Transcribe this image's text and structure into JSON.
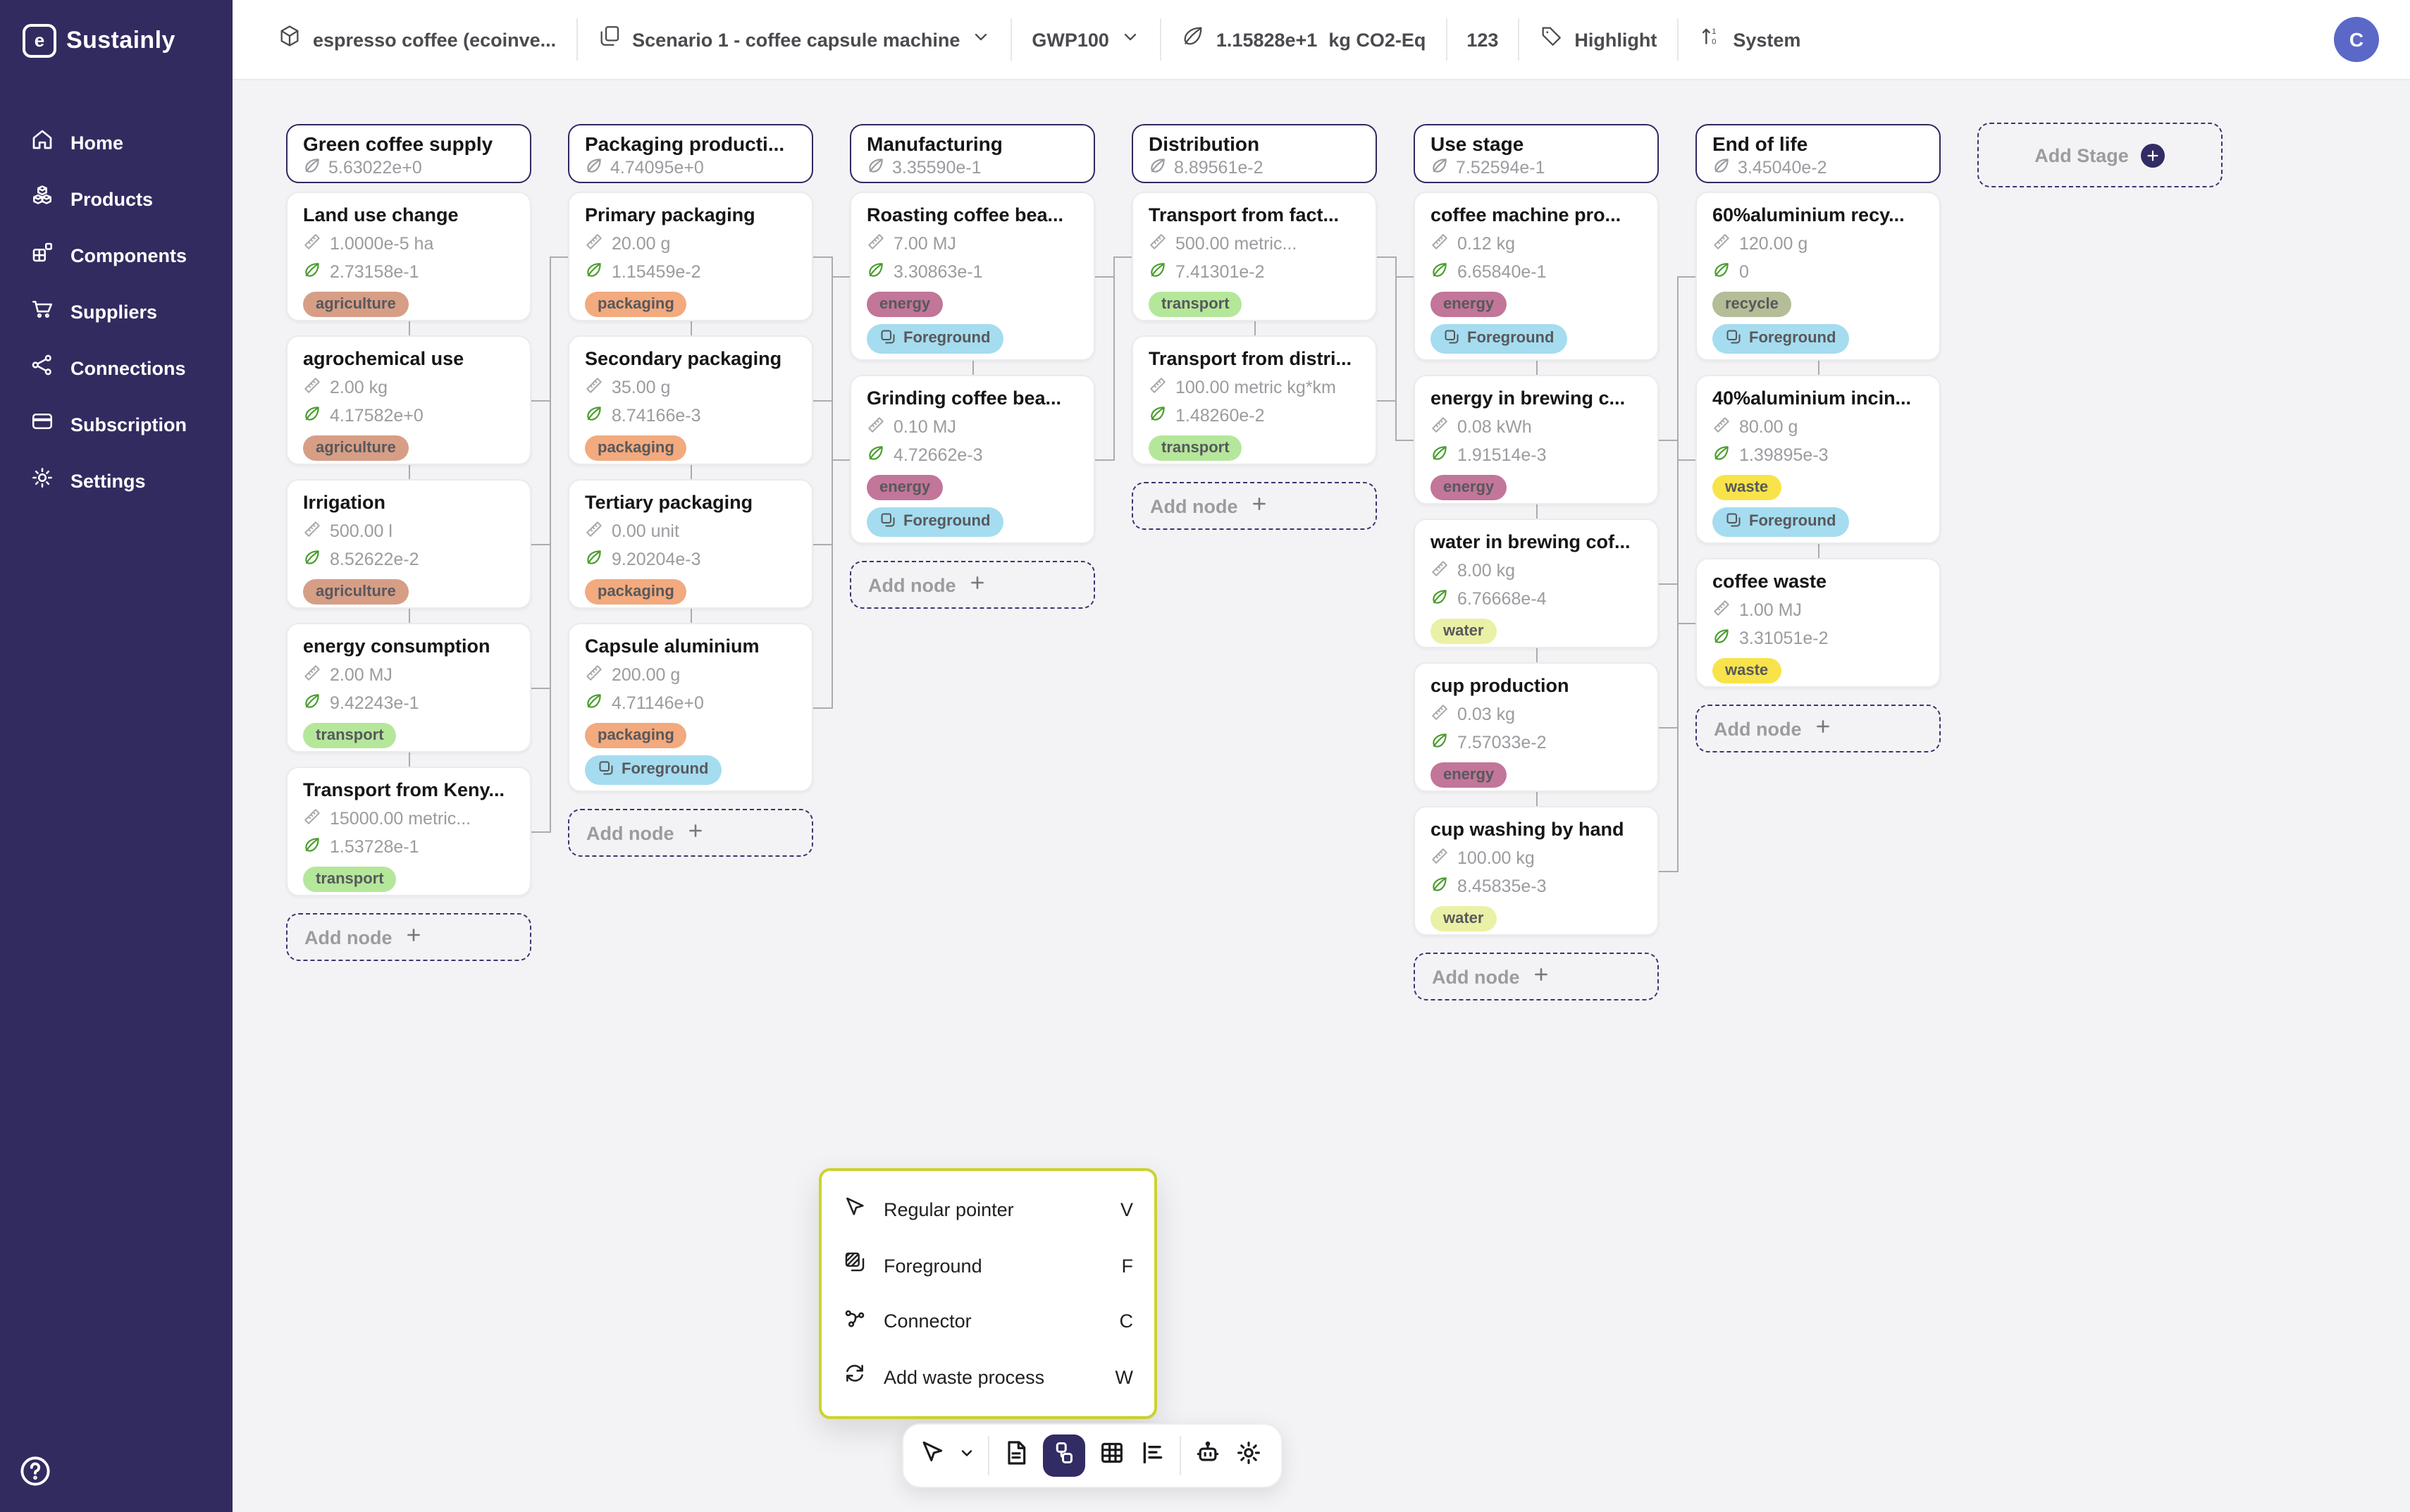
{
  "brand": {
    "name": "Sustainly"
  },
  "header": {
    "product": "espresso coffee (ecoinve...",
    "scenario": "Scenario 1 - coffee capsule machine",
    "method": "GWP100",
    "total_value": "1.15828e+1",
    "total_unit": "kg CO2-Eq",
    "count": "123",
    "highlight_label": "Highlight",
    "system_label": "System",
    "avatar_initial": "C"
  },
  "sidebar": {
    "items": [
      {
        "label": "Home",
        "icon": "home-icon"
      },
      {
        "label": "Products",
        "icon": "products-icon"
      },
      {
        "label": "Components",
        "icon": "components-icon"
      },
      {
        "label": "Suppliers",
        "icon": "suppliers-icon"
      },
      {
        "label": "Connections",
        "icon": "connections-icon"
      },
      {
        "label": "Subscription",
        "icon": "subscription-icon"
      },
      {
        "label": "Settings",
        "icon": "settings-icon"
      }
    ],
    "help_icon": "help-icon"
  },
  "canvas": {
    "add_stage_label": "Add Stage",
    "add_node_label": "Add node",
    "foreground_label": "Foreground",
    "stages": [
      {
        "title": "Green coffee supply",
        "value": "5.63022e+0",
        "nodes": [
          {
            "title": "Land use change",
            "amount": "1.0000e-5 ha",
            "value": "2.73158e-1",
            "tag": "agriculture",
            "foreground": false
          },
          {
            "title": "agrochemical use",
            "amount": "2.00 kg",
            "value": "4.17582e+0",
            "tag": "agriculture",
            "foreground": false
          },
          {
            "title": "Irrigation",
            "amount": "500.00 l",
            "value": "8.52622e-2",
            "tag": "agriculture",
            "foreground": false
          },
          {
            "title": "energy consumption",
            "amount": "2.00 MJ",
            "value": "9.42243e-1",
            "tag": "transport",
            "foreground": false
          },
          {
            "title": "Transport from Keny...",
            "amount": "15000.00 metric...",
            "value": "1.53728e-1",
            "tag": "transport",
            "foreground": false
          }
        ]
      },
      {
        "title": "Packaging producti...",
        "value": "4.74095e+0",
        "nodes": [
          {
            "title": "Primary packaging",
            "amount": "20.00 g",
            "value": "1.15459e-2",
            "tag": "packaging",
            "foreground": false
          },
          {
            "title": "Secondary packaging",
            "amount": "35.00 g",
            "value": "8.74166e-3",
            "tag": "packaging",
            "foreground": false
          },
          {
            "title": "Tertiary packaging",
            "amount": "0.00 unit",
            "value": "9.20204e-3",
            "tag": "packaging",
            "foreground": false
          },
          {
            "title": "Capsule aluminium",
            "amount": "200.00 g",
            "value": "4.71146e+0",
            "tag": "packaging",
            "foreground": true
          }
        ]
      },
      {
        "title": "Manufacturing",
        "value": "3.35590e-1",
        "nodes": [
          {
            "title": "Roasting coffee bea...",
            "amount": "7.00 MJ",
            "value": "3.30863e-1",
            "tag": "energy",
            "foreground": true
          },
          {
            "title": "Grinding coffee bea...",
            "amount": "0.10 MJ",
            "value": "4.72662e-3",
            "tag": "energy",
            "foreground": true
          }
        ]
      },
      {
        "title": "Distribution",
        "value": "8.89561e-2",
        "nodes": [
          {
            "title": "Transport from fact...",
            "amount": "500.00 metric...",
            "value": "7.41301e-2",
            "tag": "transport",
            "foreground": false
          },
          {
            "title": "Transport from distri...",
            "amount": "100.00 metric kg*km",
            "value": "1.48260e-2",
            "tag": "transport",
            "foreground": false
          }
        ]
      },
      {
        "title": "Use stage",
        "value": "7.52594e-1",
        "nodes": [
          {
            "title": "coffee machine pro...",
            "amount": "0.12 kg",
            "value": "6.65840e-1",
            "tag": "energy",
            "foreground": true
          },
          {
            "title": "energy in brewing c...",
            "amount": "0.08 kWh",
            "value": "1.91514e-3",
            "tag": "energy",
            "foreground": false
          },
          {
            "title": "water in brewing cof...",
            "amount": "8.00 kg",
            "value": "6.76668e-4",
            "tag": "water",
            "foreground": false
          },
          {
            "title": "cup production",
            "amount": "0.03 kg",
            "value": "7.57033e-2",
            "tag": "energy",
            "foreground": false
          },
          {
            "title": "cup washing by hand",
            "amount": "100.00 kg",
            "value": "8.45835e-3",
            "tag": "water",
            "foreground": false
          }
        ]
      },
      {
        "title": "End of life",
        "value": "3.45040e-2",
        "nodes": [
          {
            "title": "60%aluminium recy...",
            "amount": "120.00 g",
            "value": "0",
            "tag": "recycle",
            "foreground": true
          },
          {
            "title": "40%aluminium incin...",
            "amount": "80.00 g",
            "value": "1.39895e-3",
            "tag": "waste",
            "foreground": true
          },
          {
            "title": "coffee waste",
            "amount": "1.00 MJ",
            "value": "3.31051e-2",
            "tag": "waste",
            "foreground": false
          }
        ]
      }
    ]
  },
  "popup": {
    "items": [
      {
        "icon": "cursor-icon",
        "label": "Regular pointer",
        "shortcut": "V"
      },
      {
        "icon": "foreground-icon",
        "label": "Foreground",
        "shortcut": "F"
      },
      {
        "icon": "connector-icon",
        "label": "Connector",
        "shortcut": "C"
      },
      {
        "icon": "recycle-icon",
        "label": "Add waste process",
        "shortcut": "W"
      }
    ]
  },
  "toolbar": {
    "tools": [
      "pointer-tool",
      "document-view",
      "flowchart-view",
      "table-view",
      "chart-view",
      "robot-assistant",
      "settings"
    ],
    "selected": "flowchart-view"
  },
  "theme": {
    "sidebar_bg": "#322B5F",
    "accent_navy": "#312C63",
    "canvas_bg": "#F3F3F5",
    "popup_border": "#CCD32E",
    "avatar_bg": "#5B68C8",
    "leaf_green": "#4A9D2D",
    "muted_text": "#9B9BA0",
    "tag_colors": {
      "agriculture": "#D79E86",
      "packaging": "#F2AA7E",
      "energy": "#C27699",
      "transport": "#B5E79B",
      "water": "#EBF0A7",
      "waste": "#F8E34A",
      "recycle": "#B3BD97",
      "foreground_pill": "#A5DCEF"
    }
  }
}
